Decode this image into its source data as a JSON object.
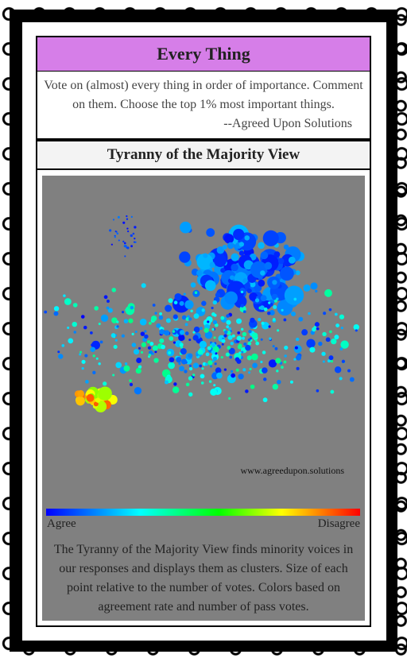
{
  "header": {
    "title": "Every Thing"
  },
  "intro": {
    "text": "Vote on (almost) every thing in order of importance. Comment on them. Choose the top 1% most important things.",
    "attribution": "--Agreed Upon Solutions"
  },
  "section": {
    "title": "Tyranny of the Majority View"
  },
  "visual": {
    "watermark": "www.agreedupon.solutions",
    "legend": {
      "low": "Agree",
      "high": "Disagree"
    }
  },
  "caption": "The Tyranny of the Majority View finds minority voices in our responses and displays them as clusters. Size of each point relative to the number of votes. Colors based on agreement rate and number of pass votes."
}
